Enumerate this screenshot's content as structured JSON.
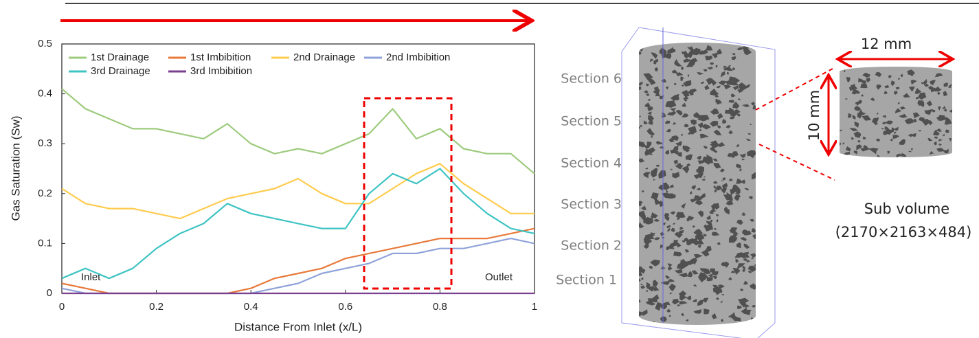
{
  "chart_data": {
    "type": "line",
    "x_label": "Distance From Inlet (x/L)",
    "y_label": "Gas Saturation (Sw)",
    "x": [
      0,
      0.05,
      0.1,
      0.15,
      0.2,
      0.25,
      0.3,
      0.35,
      0.4,
      0.45,
      0.5,
      0.55,
      0.6,
      0.65,
      0.7,
      0.75,
      0.8,
      0.85,
      0.9,
      0.95,
      1
    ],
    "series": [
      {
        "name": "1st Drainage",
        "color": "#9dcb7e",
        "values": [
          0.41,
          0.37,
          0.35,
          0.33,
          0.33,
          0.32,
          0.31,
          0.34,
          0.3,
          0.28,
          0.29,
          0.28,
          0.3,
          0.32,
          0.37,
          0.31,
          0.33,
          0.29,
          0.28,
          0.28,
          0.24
        ]
      },
      {
        "name": "1st Imbibition",
        "color": "#e8793a",
        "values": [
          0.02,
          0.01,
          0,
          0,
          0,
          0,
          0,
          0,
          0.01,
          0.03,
          0.04,
          0.05,
          0.07,
          0.08,
          0.09,
          0.1,
          0.11,
          0.11,
          0.11,
          0.12,
          0.13
        ]
      },
      {
        "name": "2nd Drainage",
        "color": "#ffcb4c",
        "values": [
          0.21,
          0.18,
          0.17,
          0.17,
          0.16,
          0.15,
          0.17,
          0.19,
          0.2,
          0.21,
          0.23,
          0.2,
          0.18,
          0.18,
          0.21,
          0.24,
          0.26,
          0.22,
          0.19,
          0.16,
          0.16
        ]
      },
      {
        "name": "2nd Imbibition",
        "color": "#8fa2d9",
        "values": [
          0.01,
          0,
          0,
          0,
          0,
          0,
          0,
          0,
          0,
          0.01,
          0.02,
          0.04,
          0.05,
          0.06,
          0.08,
          0.08,
          0.09,
          0.09,
          0.1,
          0.11,
          0.1
        ]
      },
      {
        "name": "3rd Drainage",
        "color": "#3ec3c3",
        "values": [
          0.03,
          0.05,
          0.03,
          0.05,
          0.09,
          0.12,
          0.14,
          0.18,
          0.16,
          0.15,
          0.14,
          0.13,
          0.13,
          0.2,
          0.24,
          0.22,
          0.25,
          0.2,
          0.16,
          0.13,
          0.12
        ]
      },
      {
        "name": "3rd Imbibition",
        "color": "#7a3f8f",
        "values": [
          0,
          0,
          0,
          0,
          0,
          0,
          0,
          0,
          0,
          0,
          0,
          0,
          0,
          0,
          0,
          0,
          0,
          0,
          0,
          0,
          0
        ]
      }
    ],
    "xlim": [
      0,
      1
    ],
    "xticks": [
      0,
      0.2,
      0.4,
      0.6,
      0.8,
      1
    ],
    "ylim": [
      0,
      0.5
    ],
    "yticks": [
      0,
      0.1,
      0.2,
      0.3,
      0.4,
      0.5
    ],
    "annotations": [
      "Inlet",
      "Outlet"
    ]
  },
  "diagram": {
    "sections": [
      "Section 1",
      "Section 2",
      "Section 3",
      "Section 4",
      "Section 5",
      "Section 6"
    ],
    "width_label": "12 mm",
    "height_label": "10 mm",
    "sub_volume": "Sub volume",
    "sub_volume_size": "(2170×2163×484)"
  }
}
